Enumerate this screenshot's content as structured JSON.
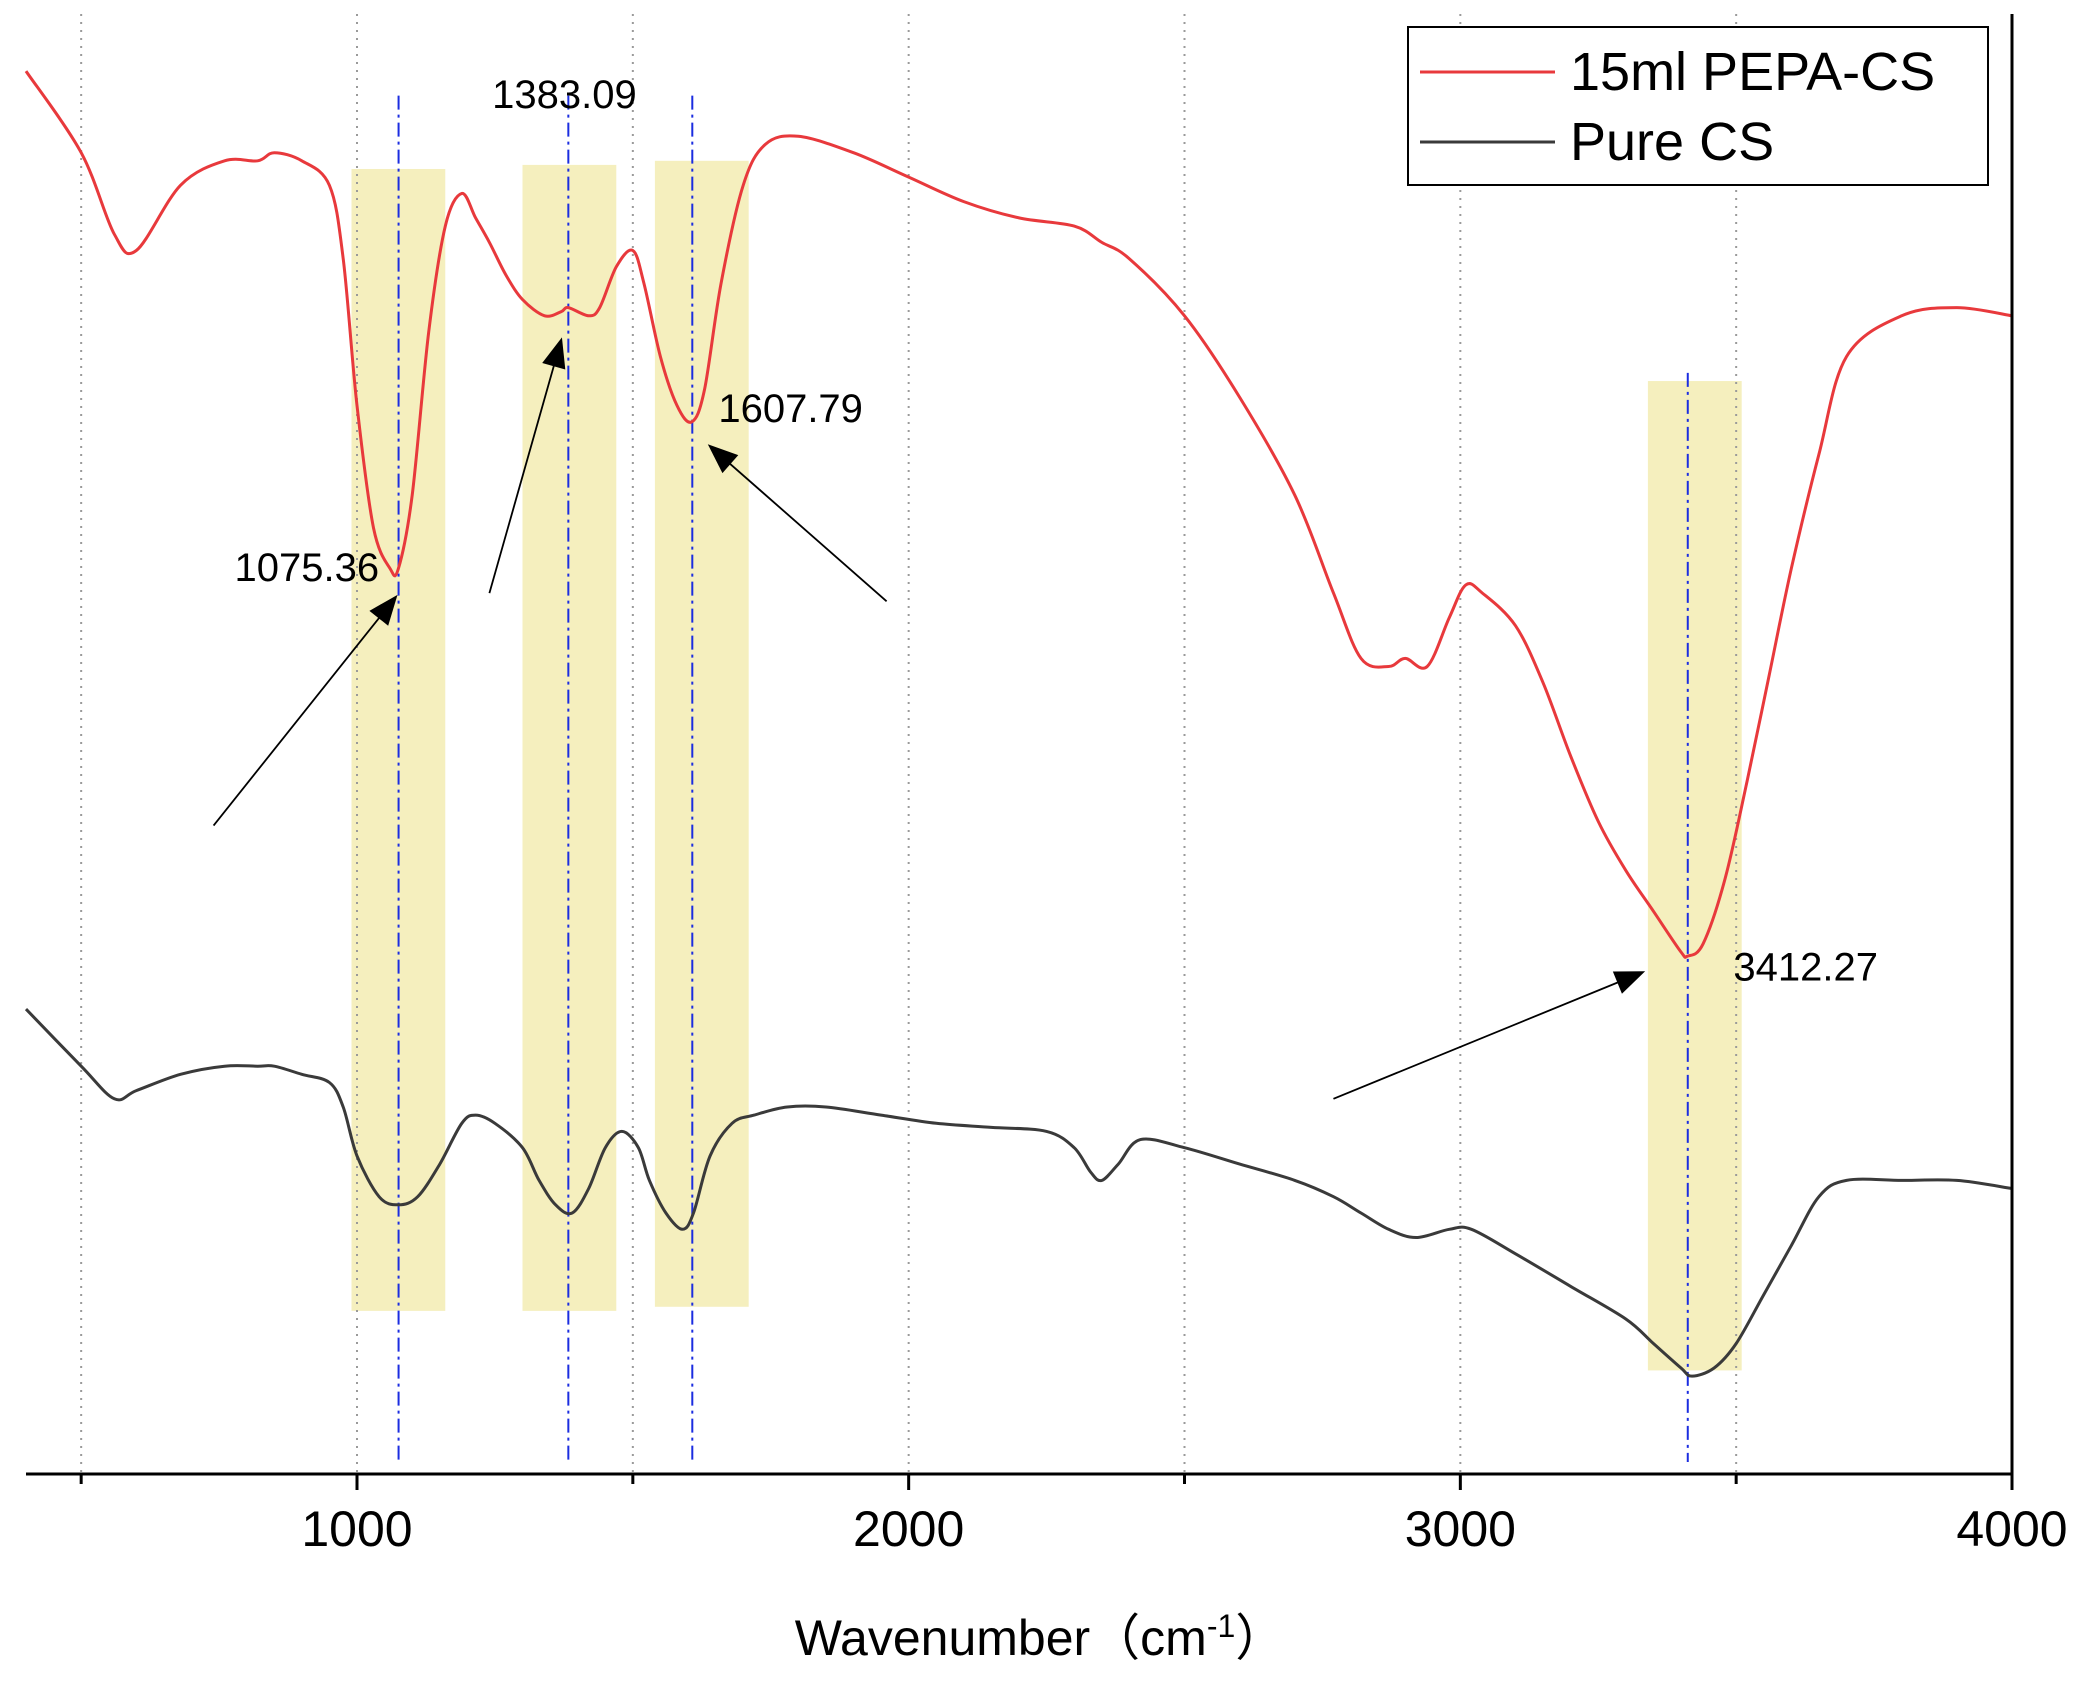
{
  "chart_data": {
    "type": "line",
    "title": "",
    "xlabel": "Wavenumber（cm",
    "xlabel_sup": "-1",
    "xlabel_close": "）",
    "ylabel": "",
    "xlim": [
      400,
      4000
    ],
    "xticks": [
      1000,
      2000,
      3000,
      4000
    ],
    "xtick_labels": [
      "1000",
      "2000",
      "3000",
      "4000"
    ],
    "minor_gridlines": [
      500,
      1000,
      1500,
      2000,
      2500,
      3000,
      3500
    ],
    "grid": "vertical dotted",
    "legend_position": "top-right",
    "series": [
      {
        "name": "15ml PEPA-CS",
        "color": "#e8393c",
        "x": [
          400,
          500,
          560,
          600,
          680,
          760,
          820,
          850,
          900,
          950,
          975,
          1000,
          1030,
          1060,
          1075,
          1100,
          1130,
          1160,
          1190,
          1215,
          1240,
          1270,
          1300,
          1340,
          1370,
          1383,
          1420,
          1440,
          1470,
          1500,
          1520,
          1550,
          1580,
          1607,
          1630,
          1660,
          1700,
          1740,
          1800,
          1900,
          2000,
          2100,
          2200,
          2300,
          2350,
          2400,
          2500,
          2600,
          2700,
          2770,
          2820,
          2870,
          2900,
          2940,
          2980,
          3010,
          3040,
          3100,
          3150,
          3200,
          3250,
          3300,
          3350,
          3400,
          3412,
          3440,
          3480,
          3520,
          3560,
          3600,
          3650,
          3700,
          3800,
          3900,
          4000
        ],
        "y": [
          89,
          79,
          69,
          67,
          75,
          78,
          78,
          79,
          78,
          75,
          66,
          48,
          33,
          28,
          28,
          37,
          57,
          70,
          74,
          71,
          68,
          64,
          61,
          59,
          59.5,
          60,
          59,
          60,
          65,
          67,
          63,
          54,
          48,
          46,
          50,
          63,
          75,
          80,
          81,
          79,
          76,
          73,
          71,
          70,
          68,
          66,
          59,
          49,
          37,
          25,
          17,
          16,
          17,
          16,
          22,
          26,
          25,
          21,
          14,
          5,
          -3,
          -9,
          -14,
          -19,
          -19.5,
          -18,
          -10,
          2,
          15,
          28,
          42,
          54,
          59,
          60,
          59
        ],
        "annotations": [
          {
            "label": "1075.36",
            "x": 1075.36
          },
          {
            "label": "1383.09",
            "x": 1383.09
          },
          {
            "label": "1607.79",
            "x": 1607.79
          },
          {
            "label": "3412.27",
            "x": 3412.27
          }
        ]
      },
      {
        "name": "Pure CS",
        "color": "#3a3a3a",
        "x": [
          400,
          500,
          560,
          600,
          680,
          760,
          820,
          850,
          900,
          950,
          975,
          1000,
          1040,
          1075,
          1110,
          1150,
          1190,
          1215,
          1250,
          1300,
          1330,
          1360,
          1390,
          1420,
          1450,
          1480,
          1510,
          1530,
          1560,
          1590,
          1610,
          1640,
          1680,
          1720,
          1780,
          1850,
          1950,
          2050,
          2150,
          2250,
          2300,
          2330,
          2350,
          2380,
          2420,
          2500,
          2600,
          2700,
          2770,
          2820,
          2870,
          2920,
          2980,
          3020,
          3100,
          3200,
          3300,
          3350,
          3400,
          3420,
          3460,
          3500,
          3550,
          3600,
          3650,
          3700,
          3800,
          3900,
          4000
        ],
        "y": [
          -26,
          -33,
          -37,
          -36,
          -34,
          -33,
          -33,
          -33,
          -34,
          -35,
          -38,
          -44,
          -49,
          -50,
          -49,
          -45,
          -40,
          -39,
          -40,
          -43,
          -47,
          -50,
          -51,
          -48,
          -43,
          -41,
          -43,
          -47,
          -51,
          -53,
          -51,
          -44,
          -40,
          -39,
          -38,
          -38,
          -39,
          -40,
          -40.5,
          -41,
          -43,
          -46,
          -47,
          -45,
          -42,
          -43,
          -45,
          -47,
          -49,
          -51,
          -53,
          -54,
          -53,
          -53,
          -56,
          -60,
          -64,
          -67,
          -70,
          -71,
          -70,
          -67,
          -61,
          -55,
          -49,
          -47,
          -47,
          -47,
          -48
        ]
      }
    ],
    "highlight_bands": [
      {
        "x0": 990,
        "x1": 1160
      },
      {
        "x0": 1300,
        "x1": 1470
      },
      {
        "x0": 1540,
        "x1": 1710
      },
      {
        "x0": 3340,
        "x1": 3510
      }
    ]
  },
  "colors": {
    "band": "#f5efbe",
    "guide": "#1b2de0",
    "grid": "#9a9a9a",
    "axis": "#000000"
  }
}
